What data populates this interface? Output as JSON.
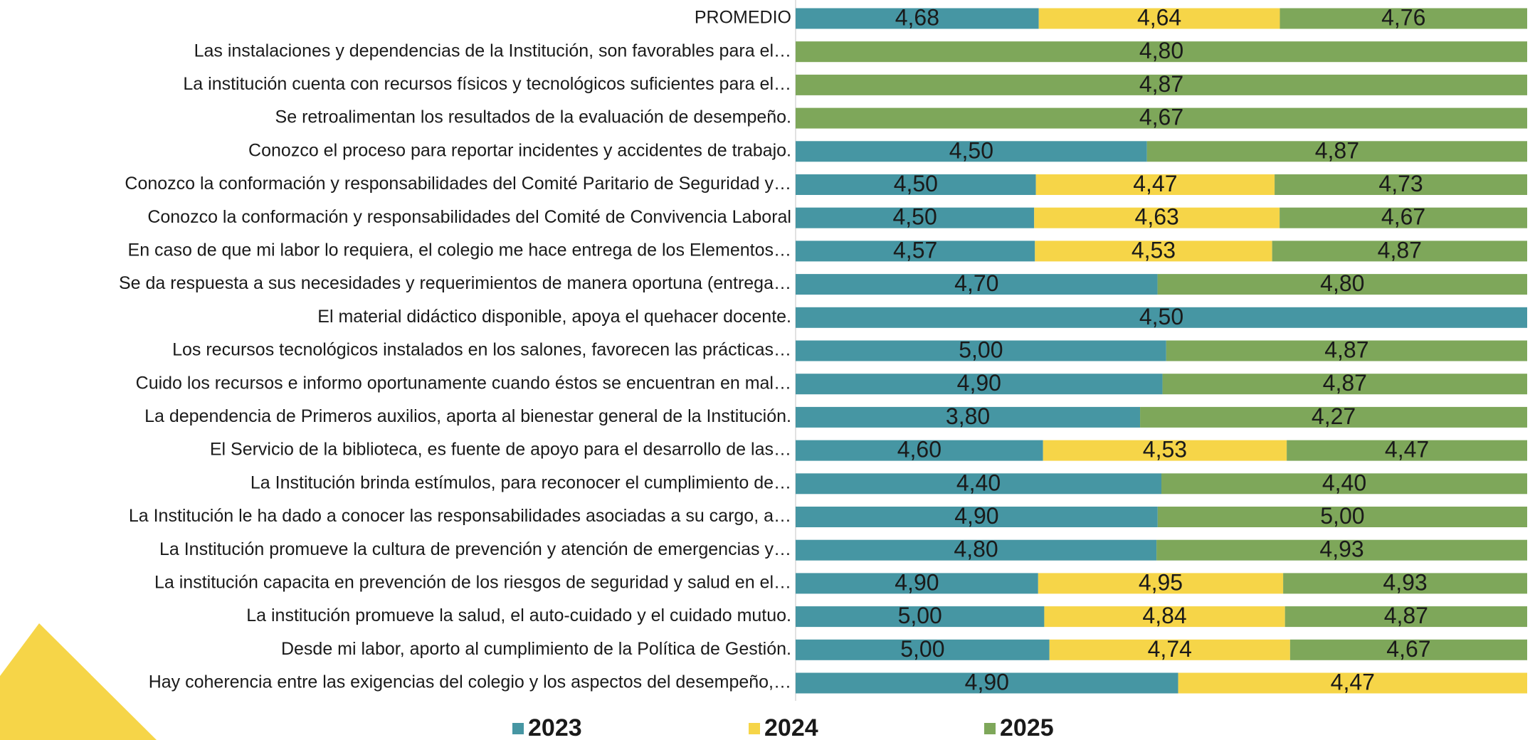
{
  "chart_data": {
    "type": "stacked_bar_100",
    "categories": [
      "PROMEDIO",
      "Las instalaciones y dependencias de la Institución, son favorables para el…",
      "La institución cuenta con recursos físicos y tecnológicos suficientes para el…",
      "Se retroalimentan los resultados de la evaluación de desempeño.",
      "Conozco el proceso para reportar incidentes  y accidentes de trabajo.",
      "Conozco la conformación y responsabilidades del Comité Paritario de Seguridad y…",
      "Conozco la conformación y responsabilidades del Comité de Convivencia Laboral",
      "En caso de que mi labor lo requiera, el colegio me hace entrega de los Elementos…",
      "Se da respuesta a sus necesidades y requerimientos de manera oportuna (entrega…",
      "El material didáctico disponible, apoya el quehacer docente.",
      "Los recursos tecnológicos instalados en los salones, favorecen las prácticas…",
      "Cuido los recursos e informo oportunamente cuando éstos se encuentran en mal…",
      "La dependencia de Primeros auxilios, aporta al bienestar general de la Institución.",
      "El Servicio de la biblioteca, es fuente de apoyo para  el desarrollo de las…",
      "La Institución brinda estímulos, para reconocer el cumplimiento de…",
      "La Institución le ha dado a conocer las responsabilidades asociadas a su cargo, a…",
      "La Institución promueve la cultura de  prevención y atención de emergencias y…",
      "La institución  capacita en prevención de los riesgos de seguridad y salud en el…",
      "La institución  promueve la salud,  el auto-cuidado y el cuidado mutuo.",
      "Desde mi  labor,  aporto al cumplimiento  de la Política  de Gestión.",
      "Hay coherencia entre las exigencias del colegio y los  aspectos del desempeño,…"
    ],
    "series": [
      {
        "name": "2023",
        "color": "#4696a3",
        "values": [
          4.68,
          null,
          null,
          null,
          4.5,
          4.5,
          4.5,
          4.57,
          4.7,
          4.5,
          5.0,
          4.9,
          3.8,
          4.6,
          4.4,
          4.9,
          4.8,
          4.9,
          5.0,
          5.0,
          4.9
        ],
        "value_labels": [
          "4,68",
          null,
          null,
          null,
          "4,50",
          "4,50",
          "4,50",
          "4,57",
          "4,70",
          "4,50",
          "5,00",
          "4,90",
          "3,80",
          "4,60",
          "4,40",
          "4,90",
          "4,80",
          "4,90",
          "5,00",
          "5,00",
          "4,90"
        ]
      },
      {
        "name": "2024",
        "color": "#f6d548",
        "values": [
          4.64,
          null,
          null,
          null,
          null,
          4.47,
          4.63,
          4.53,
          null,
          null,
          null,
          null,
          null,
          4.53,
          null,
          null,
          null,
          4.95,
          4.84,
          4.74,
          4.47
        ],
        "value_labels": [
          "4,64",
          null,
          null,
          null,
          null,
          "4,47",
          "4,63",
          "4,53",
          null,
          null,
          null,
          null,
          null,
          "4,53",
          null,
          null,
          null,
          "4,95",
          "4,84",
          "4,74",
          "4,47"
        ]
      },
      {
        "name": "2025",
        "color": "#7ea75a",
        "values": [
          4.76,
          4.8,
          4.87,
          4.67,
          4.87,
          4.73,
          4.67,
          4.87,
          4.8,
          null,
          4.87,
          4.87,
          4.27,
          4.47,
          4.4,
          5.0,
          4.93,
          4.93,
          4.87,
          4.67,
          null
        ],
        "value_labels": [
          "4,76",
          "4,80",
          "4,87",
          "4,67",
          "4,87",
          "4,73",
          "4,67",
          "4,87",
          "4,80",
          null,
          "4,87",
          "4,87",
          "4,27",
          "4,47",
          "4,40",
          "5,00",
          "4,93",
          "4,93",
          "4,87",
          "4,67",
          null
        ]
      }
    ]
  }
}
